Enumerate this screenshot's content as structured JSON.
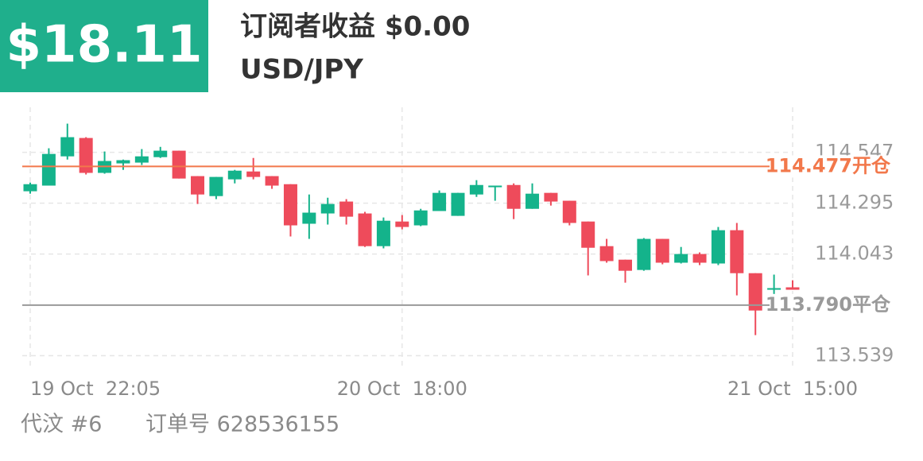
{
  "badge": "$18.11",
  "title": "订阅者收益 $0.00",
  "subtitle": "USD/JPY",
  "footer": [
    "代汶 #6",
    "订单号 628536155"
  ],
  "chart_data": {
    "type": "candlestick",
    "categories": [
      "19 Oct  22:05",
      null,
      null,
      null,
      null,
      null,
      null,
      null,
      null,
      null,
      null,
      null,
      null,
      null,
      null,
      null,
      null,
      null,
      null,
      null,
      "20 Oct  18:00",
      null,
      null,
      null,
      null,
      null,
      null,
      null,
      null,
      null,
      null,
      null,
      null,
      null,
      null,
      null,
      null,
      null,
      null,
      null,
      null,
      "21 Oct  15:00"
    ],
    "open": [
      114.354,
      114.382,
      114.527,
      114.618,
      114.445,
      114.492,
      114.496,
      114.523,
      114.555,
      114.429,
      114.33,
      114.413,
      114.452,
      114.429,
      114.389,
      114.193,
      114.244,
      114.303,
      114.244,
      114.082,
      114.204,
      114.185,
      114.256,
      114.232,
      114.338,
      114.374,
      114.385,
      114.267,
      114.346,
      114.307,
      114.204,
      114.082,
      114.015,
      113.964,
      114.118,
      114.0,
      114.043,
      113.996,
      114.161,
      113.948,
      113.866,
      113.878
    ],
    "high": [
      114.397,
      114.567,
      114.689,
      114.622,
      114.551,
      114.511,
      114.563,
      114.574,
      114.555,
      114.429,
      114.425,
      114.46,
      114.519,
      114.429,
      114.389,
      114.338,
      114.322,
      114.315,
      114.252,
      114.224,
      114.236,
      114.267,
      114.358,
      114.346,
      114.409,
      114.382,
      114.393,
      114.393,
      114.346,
      114.307,
      114.204,
      114.118,
      114.015,
      114.122,
      114.118,
      114.078,
      114.051,
      114.177,
      114.197,
      113.948,
      113.941,
      113.913
    ],
    "low": [
      114.342,
      114.382,
      114.511,
      114.437,
      114.441,
      114.46,
      114.484,
      114.519,
      114.417,
      114.291,
      114.315,
      114.393,
      114.413,
      114.366,
      114.13,
      114.118,
      114.189,
      114.189,
      114.078,
      114.071,
      114.165,
      114.181,
      114.256,
      114.232,
      114.326,
      114.307,
      114.216,
      114.267,
      114.283,
      114.185,
      113.937,
      114.0,
      113.901,
      113.96,
      113.992,
      113.996,
      113.988,
      113.988,
      113.838,
      113.641,
      113.803,
      113.866
    ],
    "close": [
      114.389,
      114.539,
      114.622,
      114.445,
      114.504,
      114.508,
      114.527,
      114.555,
      114.417,
      114.338,
      114.425,
      114.456,
      114.425,
      114.382,
      114.185,
      114.248,
      114.291,
      114.228,
      114.082,
      114.208,
      114.177,
      114.259,
      114.346,
      114.346,
      114.385,
      114.382,
      114.267,
      114.342,
      114.303,
      114.197,
      114.074,
      114.008,
      113.96,
      114.118,
      114.0,
      114.043,
      114.0,
      114.161,
      113.948,
      113.763,
      113.874,
      113.866
    ],
    "up_color": "#14b38b",
    "down_color": "#ee4b5b",
    "ylim": [
      113.49,
      114.77
    ],
    "yticks": [
      113.539,
      114.043,
      114.295,
      114.547
    ],
    "grid": true,
    "reference_lines": [
      {
        "value": 114.477,
        "label": "114.477开仓",
        "color": "#f2784b"
      },
      {
        "value": 113.79,
        "label": "113.790平仓",
        "color": "#9a9a9a"
      }
    ]
  }
}
